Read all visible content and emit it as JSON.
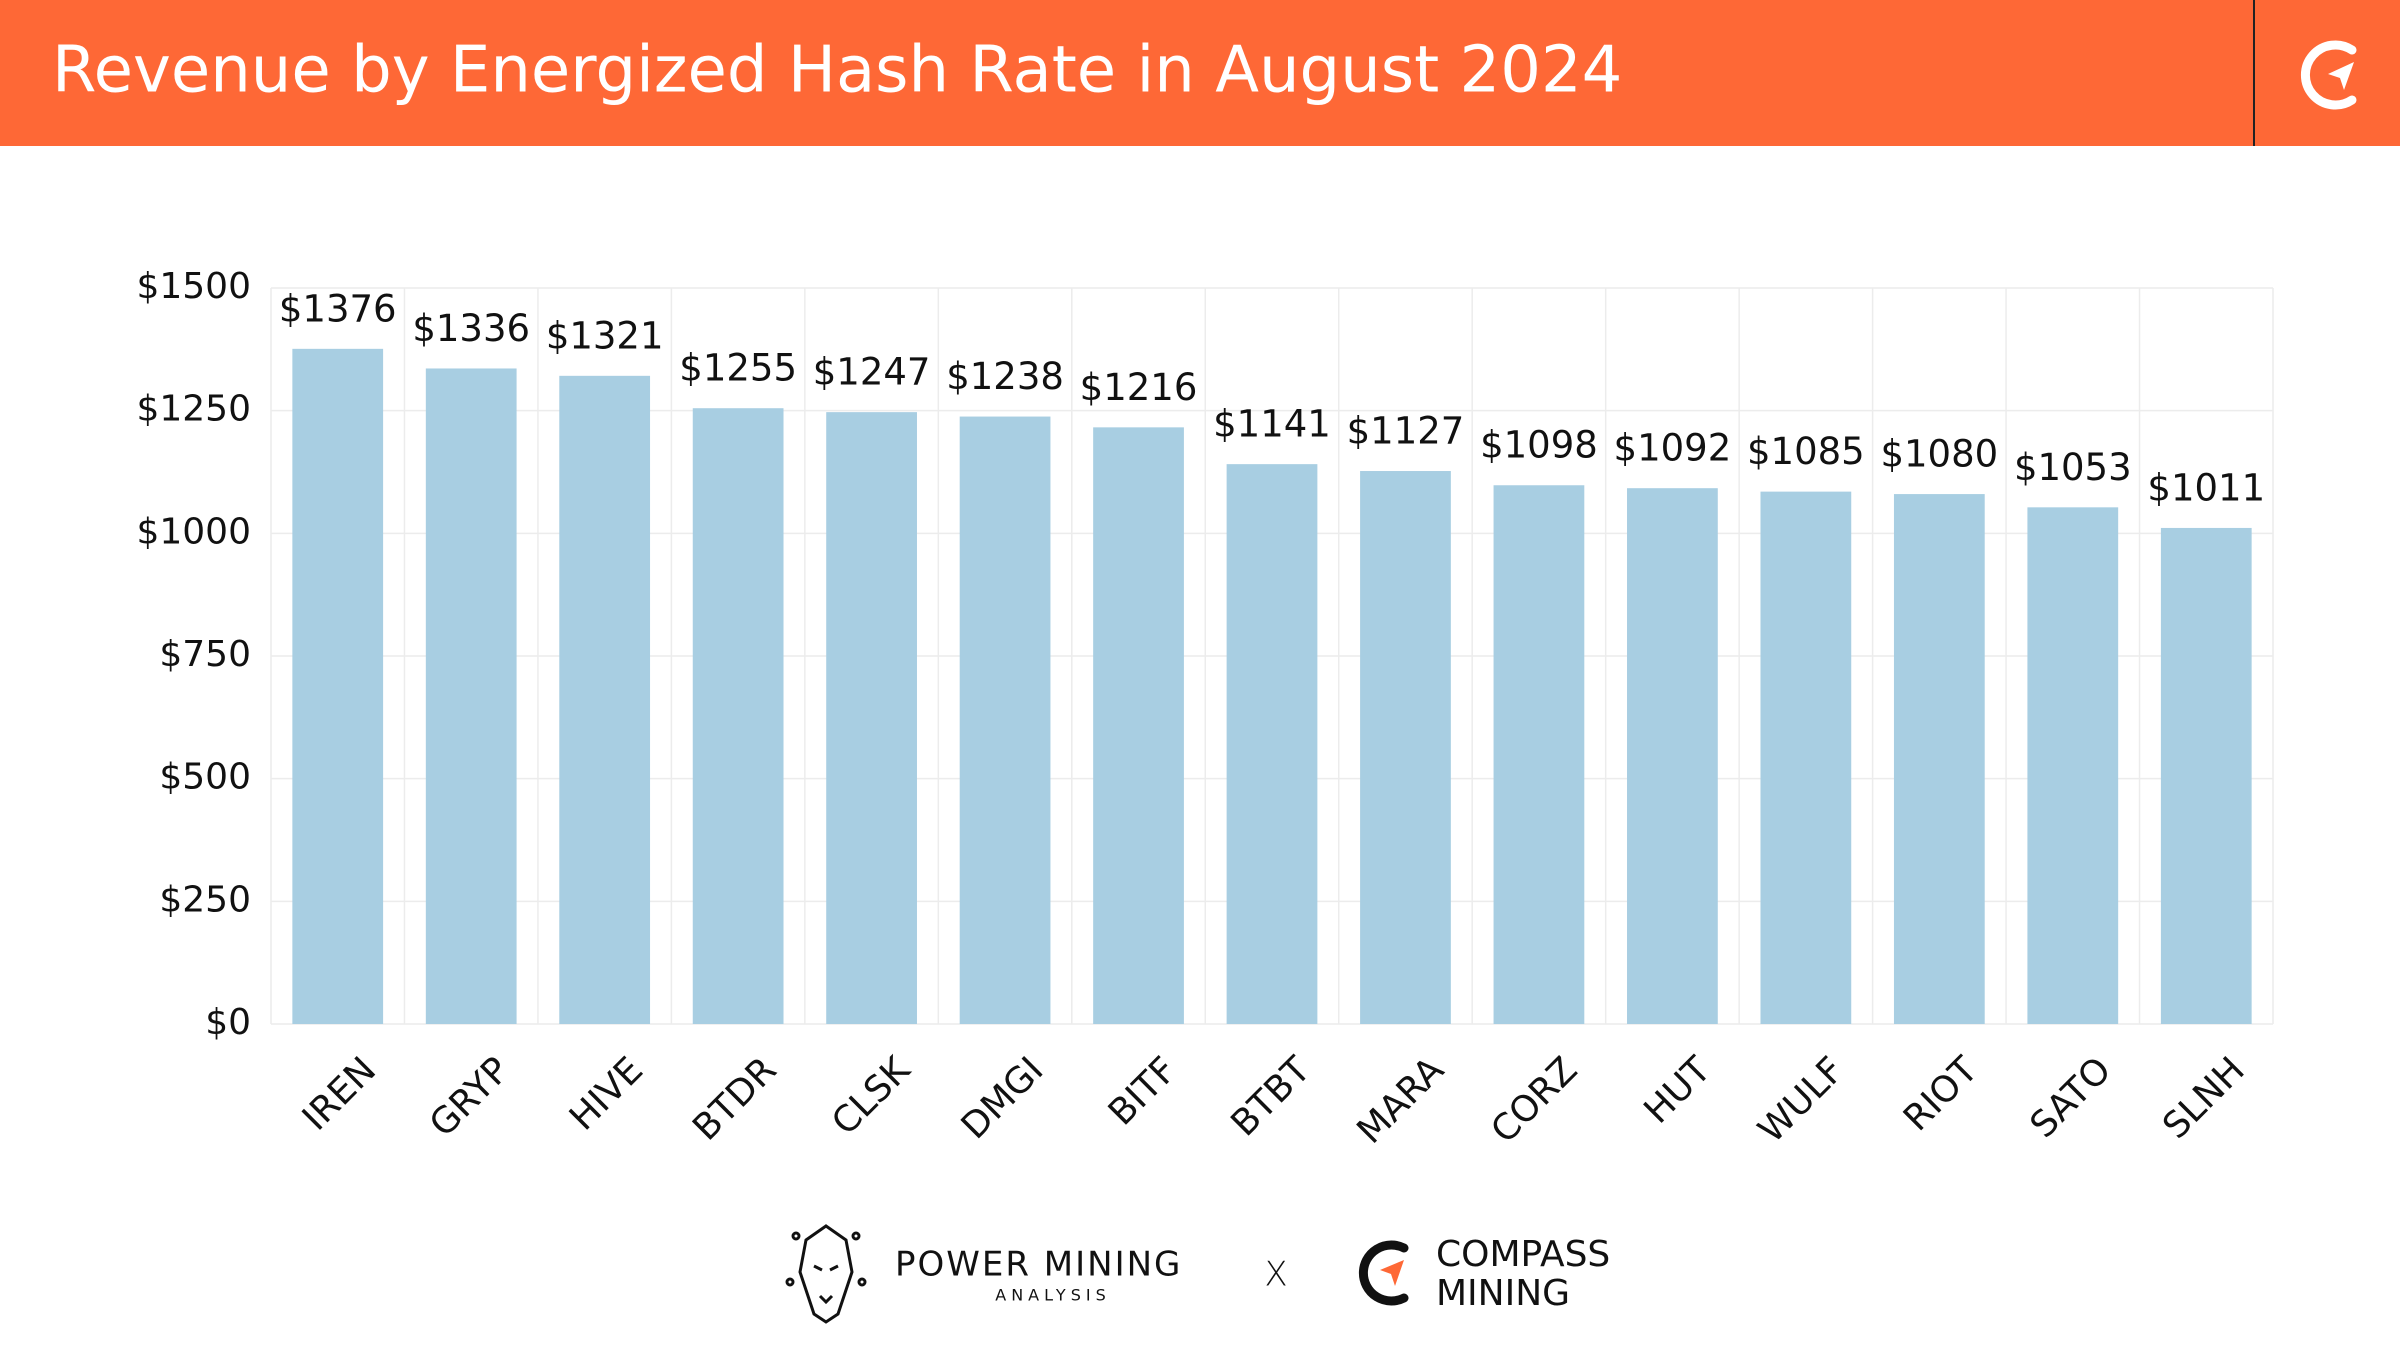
{
  "chart_data": {
    "type": "bar",
    "title": "Revenue by Energized Hash Rate in August 2024",
    "categories": [
      "IREN",
      "GRYP",
      "HIVE",
      "BTDR",
      "CLSK",
      "DMGI",
      "BITF",
      "BTBT",
      "MARA",
      "CORZ",
      "HUT",
      "WULF",
      "RIOT",
      "SATO",
      "SLNH"
    ],
    "values": [
      1376,
      1336,
      1321,
      1255,
      1247,
      1238,
      1216,
      1141,
      1127,
      1098,
      1092,
      1085,
      1080,
      1053,
      1011
    ],
    "value_labels": [
      "$1376",
      "$1336",
      "$1321",
      "$1255",
      "$1247",
      "$1238",
      "$1216",
      "$1141",
      "$1127",
      "$1098",
      "$1092",
      "$1085",
      "$1080",
      "$1053",
      "$1011"
    ],
    "color": "#a8cee2",
    "ylim": [
      0,
      1500
    ],
    "yticks": [
      {
        "value": 0,
        "label": "$0"
      },
      {
        "value": 250,
        "label": "$250"
      },
      {
        "value": 500,
        "label": "$500"
      },
      {
        "value": 750,
        "label": "$750"
      },
      {
        "value": 1000,
        "label": "$1000"
      },
      {
        "value": 1250,
        "label": "$1250"
      },
      {
        "value": 1500,
        "label": "$1500"
      }
    ],
    "grid": true,
    "footer": {
      "left": "POWER MINING",
      "left_sub": "ANALYSIS",
      "separator": "X",
      "right_top": "COMPASS",
      "right_bottom": "MINING"
    }
  }
}
